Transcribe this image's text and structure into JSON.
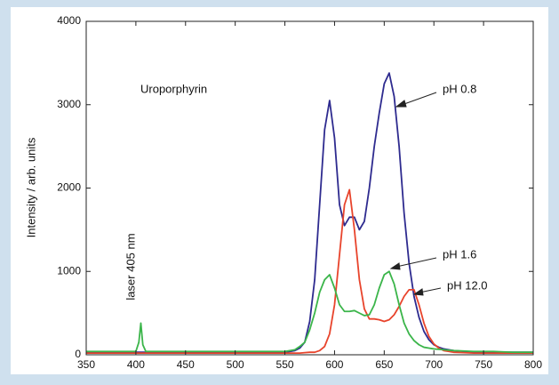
{
  "chart_data": {
    "type": "line",
    "xlabel": "",
    "ylabel": "Intensity / arb. units",
    "annotations": [
      "Uroporphyrin",
      "laser 405 nm"
    ],
    "x": [
      350,
      360,
      370,
      380,
      390,
      400,
      403,
      405,
      407,
      410,
      420,
      430,
      440,
      450,
      460,
      470,
      480,
      490,
      500,
      510,
      520,
      530,
      540,
      550,
      560,
      565,
      570,
      575,
      580,
      585,
      590,
      595,
      600,
      605,
      610,
      615,
      620,
      625,
      630,
      635,
      640,
      645,
      650,
      655,
      660,
      665,
      670,
      675,
      680,
      685,
      690,
      695,
      700,
      705,
      710,
      715,
      720,
      730,
      740,
      750,
      760,
      770,
      780,
      790,
      800
    ],
    "series": [
      {
        "name": "pH 0.8",
        "color": "#2e2b8f",
        "values": [
          30,
          30,
          30,
          30,
          30,
          30,
          30,
          30,
          30,
          30,
          30,
          30,
          30,
          30,
          30,
          30,
          30,
          30,
          30,
          30,
          30,
          30,
          30,
          30,
          50,
          80,
          150,
          400,
          900,
          1800,
          2700,
          3050,
          2600,
          1800,
          1550,
          1650,
          1650,
          1500,
          1600,
          2000,
          2500,
          2900,
          3250,
          3380,
          3100,
          2500,
          1700,
          1100,
          700,
          450,
          280,
          180,
          120,
          90,
          70,
          60,
          50,
          40,
          35,
          30,
          30,
          30,
          30,
          30,
          30
        ]
      },
      {
        "name": "pH 12.0",
        "color": "#e8442c",
        "values": [
          20,
          20,
          20,
          20,
          20,
          20,
          20,
          20,
          20,
          20,
          20,
          20,
          20,
          20,
          20,
          20,
          20,
          20,
          20,
          20,
          20,
          20,
          20,
          20,
          20,
          20,
          25,
          30,
          30,
          50,
          100,
          250,
          600,
          1200,
          1800,
          1980,
          1500,
          900,
          550,
          430,
          430,
          420,
          400,
          420,
          480,
          580,
          700,
          780,
          780,
          600,
          380,
          220,
          130,
          80,
          50,
          40,
          30,
          25,
          20,
          20,
          20,
          20,
          20,
          20,
          20
        ]
      },
      {
        "name": "pH 1.6",
        "color": "#3bb54a",
        "values": [
          40,
          40,
          40,
          40,
          40,
          40,
          150,
          380,
          120,
          40,
          40,
          40,
          40,
          40,
          40,
          40,
          40,
          40,
          40,
          40,
          40,
          40,
          40,
          40,
          60,
          100,
          150,
          300,
          500,
          750,
          900,
          960,
          800,
          600,
          520,
          520,
          530,
          500,
          470,
          480,
          600,
          800,
          960,
          1000,
          850,
          600,
          380,
          250,
          170,
          120,
          90,
          80,
          70,
          65,
          60,
          55,
          50,
          45,
          40,
          40,
          40,
          35,
          30,
          30,
          30
        ]
      }
    ],
    "xlim": [
      350,
      800
    ],
    "xticks": [
      350,
      400,
      450,
      500,
      550,
      600,
      650,
      700,
      750,
      800
    ],
    "ylim": [
      0,
      4000
    ],
    "yticks": [
      0,
      1000,
      2000,
      3000,
      4000
    ]
  }
}
